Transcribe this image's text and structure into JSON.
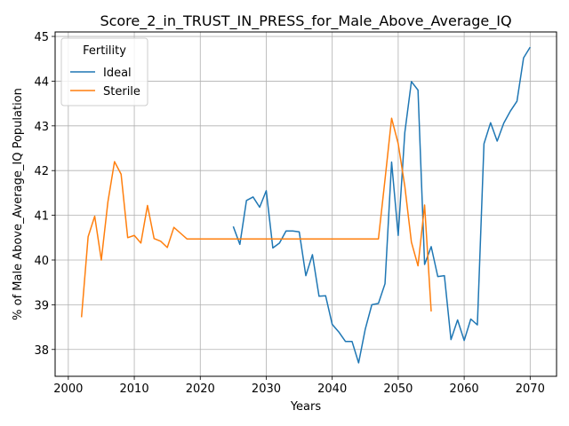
{
  "chart_data": {
    "type": "line",
    "title": "Score_2_in_TRUST_IN_PRESS_for_Male_Above_Average_IQ",
    "xlabel": "Years",
    "ylabel": "% of Male Above_Average_IQ Population",
    "xlim": [
      1998,
      2074
    ],
    "ylim": [
      37.4,
      45.1
    ],
    "xticks": [
      2000,
      2010,
      2020,
      2030,
      2040,
      2050,
      2060,
      2070
    ],
    "yticks": [
      38,
      39,
      40,
      41,
      42,
      43,
      44,
      45
    ],
    "grid": true,
    "legend": {
      "title": "Fertility",
      "placement": "top-left"
    },
    "series": [
      {
        "name": "Ideal",
        "color": "#1f77b4",
        "points": [
          [
            2025,
            40.75
          ],
          [
            2026,
            40.35
          ],
          [
            2027,
            41.33
          ],
          [
            2028,
            41.41
          ],
          [
            2029,
            41.18
          ],
          [
            2030,
            41.55
          ],
          [
            2031,
            40.27
          ],
          [
            2032,
            40.38
          ],
          [
            2033,
            40.65
          ],
          [
            2034,
            40.65
          ],
          [
            2035,
            40.63
          ],
          [
            2036,
            39.65
          ],
          [
            2037,
            40.12
          ],
          [
            2038,
            39.19
          ],
          [
            2039,
            39.2
          ],
          [
            2040,
            38.56
          ],
          [
            2041,
            38.39
          ],
          [
            2042,
            38.18
          ],
          [
            2043,
            38.18
          ],
          [
            2044,
            37.7
          ],
          [
            2045,
            38.45
          ],
          [
            2046,
            39.0
          ],
          [
            2047,
            39.03
          ],
          [
            2048,
            39.47
          ],
          [
            2049,
            42.19
          ],
          [
            2050,
            40.55
          ],
          [
            2051,
            42.85
          ],
          [
            2052,
            43.99
          ],
          [
            2053,
            43.8
          ],
          [
            2054,
            39.9
          ],
          [
            2055,
            40.3
          ],
          [
            2056,
            39.63
          ],
          [
            2057,
            39.65
          ],
          [
            2058,
            38.22
          ],
          [
            2059,
            38.66
          ],
          [
            2060,
            38.2
          ],
          [
            2061,
            38.68
          ],
          [
            2062,
            38.55
          ],
          [
            2063,
            42.6
          ],
          [
            2064,
            43.07
          ],
          [
            2065,
            42.66
          ],
          [
            2066,
            43.06
          ],
          [
            2067,
            43.33
          ],
          [
            2068,
            43.55
          ],
          [
            2069,
            44.52
          ],
          [
            2070,
            44.76
          ]
        ]
      },
      {
        "name": "Sterile",
        "color": "#ff7f0e",
        "points": [
          [
            2002,
            38.72
          ],
          [
            2003,
            40.52
          ],
          [
            2004,
            40.98
          ],
          [
            2005,
            40.0
          ],
          [
            2006,
            41.3
          ],
          [
            2007,
            42.2
          ],
          [
            2008,
            41.92
          ],
          [
            2009,
            40.5
          ],
          [
            2010,
            40.55
          ],
          [
            2011,
            40.38
          ],
          [
            2012,
            41.22
          ],
          [
            2013,
            40.48
          ],
          [
            2014,
            40.42
          ],
          [
            2015,
            40.28
          ],
          [
            2016,
            40.73
          ],
          [
            2017,
            40.6
          ],
          [
            2018,
            40.47
          ],
          [
            2019,
            40.47
          ],
          [
            2020,
            40.47
          ],
          [
            2021,
            40.47
          ],
          [
            2022,
            40.47
          ],
          [
            2023,
            40.47
          ],
          [
            2024,
            40.47
          ],
          [
            2025,
            40.47
          ],
          [
            2026,
            40.47
          ],
          [
            2027,
            40.47
          ],
          [
            2028,
            40.47
          ],
          [
            2029,
            40.47
          ],
          [
            2030,
            40.47
          ],
          [
            2031,
            40.47
          ],
          [
            2032,
            40.47
          ],
          [
            2033,
            40.47
          ],
          [
            2034,
            40.47
          ],
          [
            2035,
            40.47
          ],
          [
            2036,
            40.47
          ],
          [
            2037,
            40.47
          ],
          [
            2038,
            40.47
          ],
          [
            2039,
            40.47
          ],
          [
            2040,
            40.47
          ],
          [
            2041,
            40.47
          ],
          [
            2042,
            40.47
          ],
          [
            2043,
            40.47
          ],
          [
            2044,
            40.47
          ],
          [
            2045,
            40.47
          ],
          [
            2046,
            40.47
          ],
          [
            2047,
            40.47
          ],
          [
            2048,
            41.8
          ],
          [
            2049,
            43.17
          ],
          [
            2050,
            42.6
          ],
          [
            2051,
            41.65
          ],
          [
            2052,
            40.4
          ],
          [
            2053,
            39.87
          ],
          [
            2054,
            41.23
          ],
          [
            2055,
            38.85
          ]
        ]
      }
    ]
  }
}
